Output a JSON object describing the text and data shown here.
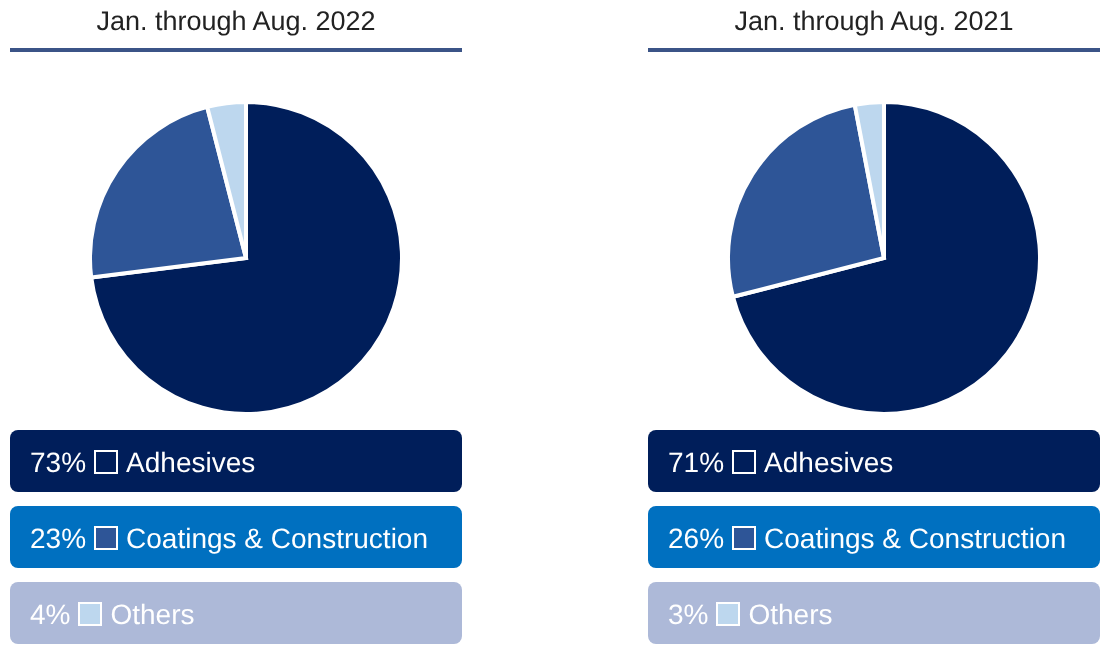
{
  "chart_data": [
    {
      "type": "pie",
      "title": "Jan. through Aug. 2022",
      "categories": [
        "Adhesives",
        "Coatings & Construction",
        "Others"
      ],
      "values": [
        73,
        23,
        4
      ],
      "value_labels": [
        "73%",
        "23%",
        "4%"
      ],
      "colors": [
        "#001e5a",
        "#2e5597",
        "#bdd7ee"
      ],
      "legend": "bottom"
    },
    {
      "type": "pie",
      "title": "Jan. through Aug. 2021",
      "categories": [
        "Adhesives",
        "Coatings & Construction",
        "Others"
      ],
      "values": [
        71,
        26,
        3
      ],
      "value_labels": [
        "71%",
        "26%",
        "3%"
      ],
      "colors": [
        "#001e5a",
        "#2e5597",
        "#bdd7ee"
      ],
      "legend": "bottom"
    }
  ]
}
